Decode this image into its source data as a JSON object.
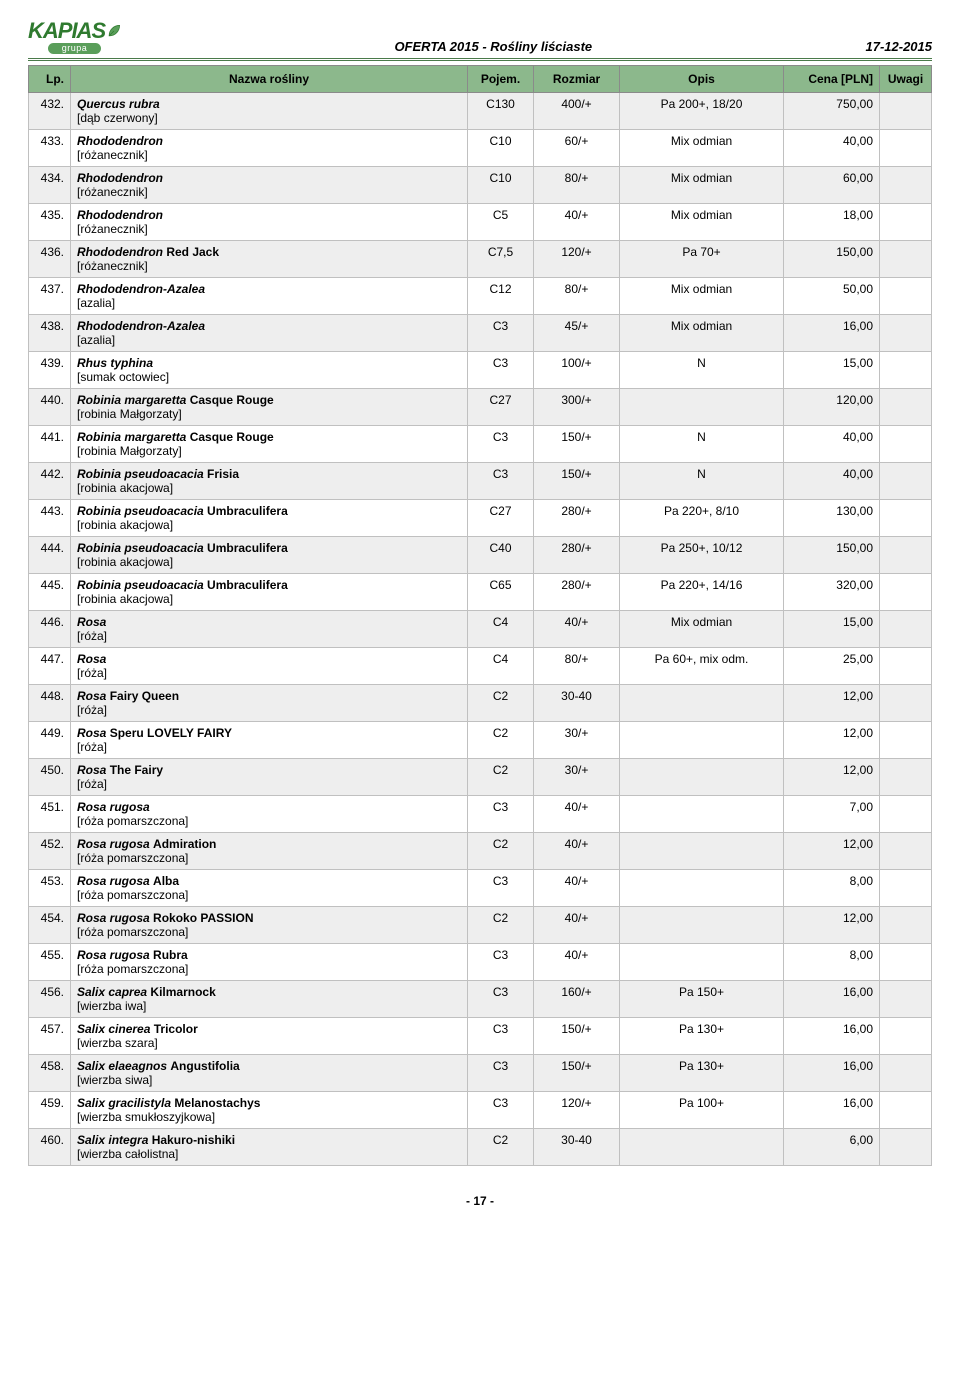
{
  "header": {
    "logo_text": "KAPIAS",
    "logo_sub": "grupa",
    "title": "OFERTA 2015 - Rośliny liściaste",
    "date": "17-12-2015"
  },
  "columns": {
    "lp": "Lp.",
    "name": "Nazwa rośliny",
    "pojem": "Pojem.",
    "rozmiar": "Rozmiar",
    "opis": "Opis",
    "cena": "Cena [PLN]",
    "uwagi": "Uwagi"
  },
  "rows": [
    {
      "lp": "432.",
      "latin": "<b><i>Quercus rubra</i></b>",
      "common": "[dąb czerwony]",
      "pojem": "C130",
      "rozmiar": "400/+",
      "opis": "Pa 200+, 18/20",
      "cena": "750,00",
      "uwagi": ""
    },
    {
      "lp": "433.",
      "latin": "<b><i>Rhododendron</i></b>",
      "common": "[różanecznik]",
      "pojem": "C10",
      "rozmiar": "60/+",
      "opis": "Mix odmian",
      "cena": "40,00",
      "uwagi": ""
    },
    {
      "lp": "434.",
      "latin": "<b><i>Rhododendron</i></b>",
      "common": "[różanecznik]",
      "pojem": "C10",
      "rozmiar": "80/+",
      "opis": "Mix odmian",
      "cena": "60,00",
      "uwagi": ""
    },
    {
      "lp": "435.",
      "latin": "<b><i>Rhododendron</i></b>",
      "common": "[różanecznik]",
      "pojem": "C5",
      "rozmiar": "40/+",
      "opis": "Mix odmian",
      "cena": "18,00",
      "uwagi": ""
    },
    {
      "lp": "436.",
      "latin": "<b><i>Rhododendron</i></b> <b>Red Jack</b>",
      "common": "[różanecznik]",
      "pojem": "C7,5",
      "rozmiar": "120/+",
      "opis": "Pa 70+",
      "cena": "150,00",
      "uwagi": ""
    },
    {
      "lp": "437.",
      "latin": "<b><i>Rhododendron-Azalea</i></b>",
      "common": "[azalia]",
      "pojem": "C12",
      "rozmiar": "80/+",
      "opis": "Mix odmian",
      "cena": "50,00",
      "uwagi": ""
    },
    {
      "lp": "438.",
      "latin": "<b><i>Rhododendron-Azalea</i></b>",
      "common": "[azalia]",
      "pojem": "C3",
      "rozmiar": "45/+",
      "opis": "Mix odmian",
      "cena": "16,00",
      "uwagi": ""
    },
    {
      "lp": "439.",
      "latin": "<b><i>Rhus typhina</i></b>",
      "common": "[sumak octowiec]",
      "pojem": "C3",
      "rozmiar": "100/+",
      "opis": "N",
      "cena": "15,00",
      "uwagi": ""
    },
    {
      "lp": "440.",
      "latin": "<b><i>Robinia margaretta</i></b> <b>Casque Rouge</b>",
      "common": "[robinia Małgorzaty]",
      "pojem": "C27",
      "rozmiar": "300/+",
      "opis": "",
      "cena": "120,00",
      "uwagi": ""
    },
    {
      "lp": "441.",
      "latin": "<b><i>Robinia margaretta</i></b> <b>Casque Rouge</b>",
      "common": "[robinia Małgorzaty]",
      "pojem": "C3",
      "rozmiar": "150/+",
      "opis": "N",
      "cena": "40,00",
      "uwagi": ""
    },
    {
      "lp": "442.",
      "latin": "<b><i>Robinia pseudoacacia</i></b> <b>Frisia</b>",
      "common": "[robinia akacjowa]",
      "pojem": "C3",
      "rozmiar": "150/+",
      "opis": "N",
      "cena": "40,00",
      "uwagi": ""
    },
    {
      "lp": "443.",
      "latin": "<b><i>Robinia pseudoacacia</i></b> <b>Umbraculifera</b>",
      "common": "[robinia akacjowa]",
      "pojem": "C27",
      "rozmiar": "280/+",
      "opis": "Pa 220+, 8/10",
      "cena": "130,00",
      "uwagi": ""
    },
    {
      "lp": "444.",
      "latin": "<b><i>Robinia pseudoacacia</i></b> <b>Umbraculifera</b>",
      "common": "[robinia akacjowa]",
      "pojem": "C40",
      "rozmiar": "280/+",
      "opis": "Pa 250+, 10/12",
      "cena": "150,00",
      "uwagi": ""
    },
    {
      "lp": "445.",
      "latin": "<b><i>Robinia pseudoacacia</i></b> <b>Umbraculifera</b>",
      "common": "[robinia akacjowa]",
      "pojem": "C65",
      "rozmiar": "280/+",
      "opis": "Pa 220+, 14/16",
      "cena": "320,00",
      "uwagi": ""
    },
    {
      "lp": "446.",
      "latin": "<b><i>Rosa</i></b>",
      "common": "[róża]",
      "pojem": "C4",
      "rozmiar": "40/+",
      "opis": "Mix odmian",
      "cena": "15,00",
      "uwagi": ""
    },
    {
      "lp": "447.",
      "latin": "<b><i>Rosa</i></b>",
      "common": "[róża]",
      "pojem": "C4",
      "rozmiar": "80/+",
      "opis": "Pa 60+, mix odm.",
      "cena": "25,00",
      "uwagi": ""
    },
    {
      "lp": "448.",
      "latin": "<b><i>Rosa</i></b> <b>Fairy Queen</b>",
      "common": "[róża]",
      "pojem": "C2",
      "rozmiar": "30-40",
      "opis": "",
      "cena": "12,00",
      "uwagi": ""
    },
    {
      "lp": "449.",
      "latin": "<b><i>Rosa</i></b> <b>Speru LOVELY FAIRY</b>",
      "common": "[róża]",
      "pojem": "C2",
      "rozmiar": "30/+",
      "opis": "",
      "cena": "12,00",
      "uwagi": ""
    },
    {
      "lp": "450.",
      "latin": "<b><i>Rosa</i></b> <b>The Fairy</b>",
      "common": "[róża]",
      "pojem": "C2",
      "rozmiar": "30/+",
      "opis": "",
      "cena": "12,00",
      "uwagi": ""
    },
    {
      "lp": "451.",
      "latin": "<b><i>Rosa rugosa</i></b>",
      "common": "[róża pomarszczona]",
      "pojem": "C3",
      "rozmiar": "40/+",
      "opis": "",
      "cena": "7,00",
      "uwagi": ""
    },
    {
      "lp": "452.",
      "latin": "<b><i>Rosa rugosa</i></b> <b>Admiration</b>",
      "common": "[róża pomarszczona]",
      "pojem": "C2",
      "rozmiar": "40/+",
      "opis": "",
      "cena": "12,00",
      "uwagi": ""
    },
    {
      "lp": "453.",
      "latin": "<b><i>Rosa rugosa</i></b> <b>Alba</b>",
      "common": "[róża pomarszczona]",
      "pojem": "C3",
      "rozmiar": "40/+",
      "opis": "",
      "cena": "8,00",
      "uwagi": ""
    },
    {
      "lp": "454.",
      "latin": "<b><i>Rosa rugosa</i></b> <b>Rokoko PASSION</b>",
      "common": "[róża pomarszczona]",
      "pojem": "C2",
      "rozmiar": "40/+",
      "opis": "",
      "cena": "12,00",
      "uwagi": ""
    },
    {
      "lp": "455.",
      "latin": "<b><i>Rosa rugosa</i></b> <b>Rubra</b>",
      "common": "[róża pomarszczona]",
      "pojem": "C3",
      "rozmiar": "40/+",
      "opis": "",
      "cena": "8,00",
      "uwagi": ""
    },
    {
      "lp": "456.",
      "latin": "<b><i>Salix caprea</i></b> <b>Kilmarnock</b>",
      "common": "[wierzba iwa]",
      "pojem": "C3",
      "rozmiar": "160/+",
      "opis": "Pa 150+",
      "cena": "16,00",
      "uwagi": ""
    },
    {
      "lp": "457.",
      "latin": "<b><i>Salix cinerea</i></b> <b>Tricolor</b>",
      "common": "[wierzba szara]",
      "pojem": "C3",
      "rozmiar": "150/+",
      "opis": "Pa 130+",
      "cena": "16,00",
      "uwagi": ""
    },
    {
      "lp": "458.",
      "latin": "<b><i>Salix elaeagnos</i></b> <b>Angustifolia</b>",
      "common": "[wierzba siwa]",
      "pojem": "C3",
      "rozmiar": "150/+",
      "opis": "Pa 130+",
      "cena": "16,00",
      "uwagi": ""
    },
    {
      "lp": "459.",
      "latin": "<b><i>Salix gracilistyla</i></b> <b>Melanostachys</b>",
      "common": "[wierzba smukłoszyjkowa]",
      "pojem": "C3",
      "rozmiar": "120/+",
      "opis": "Pa 100+",
      "cena": "16,00",
      "uwagi": ""
    },
    {
      "lp": "460.",
      "latin": "<b><i>Salix integra</i></b> <b>Hakuro-nishiki</b>",
      "common": "[wierzba całolistna]",
      "pojem": "C2",
      "rozmiar": "30-40",
      "opis": "",
      "cena": "6,00",
      "uwagi": ""
    }
  ],
  "footer": "- 17 -",
  "style": {
    "header_bg": "#8cb88c",
    "row_alt_bg": "#eeeeee",
    "border_color": "#c0c0c0",
    "logo_color": "#2f7a2f"
  }
}
